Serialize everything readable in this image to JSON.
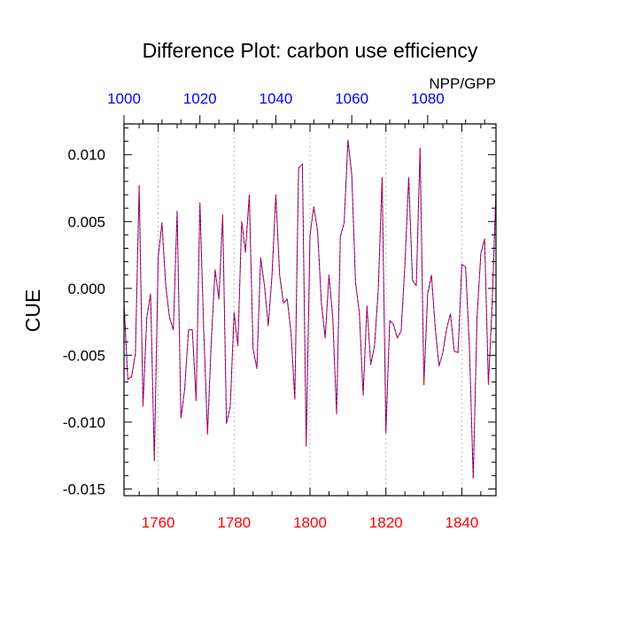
{
  "chart_data": {
    "type": "line",
    "title": "Difference Plot: carbon use efficiency",
    "ylabel": "CUE",
    "right_label": "NPP/GPP",
    "xlim": [
      1751,
      1849
    ],
    "ylim": [
      -0.0155,
      0.0123
    ],
    "bottom_axis": {
      "ticks": [
        1760,
        1780,
        1800,
        1820,
        1840
      ],
      "labels": [
        "1760",
        "1780",
        "1800",
        "1820",
        "1840"
      ],
      "color": "#ff0000"
    },
    "top_axis": {
      "offset": 751,
      "ticks": [
        1000,
        1020,
        1040,
        1060,
        1080
      ],
      "labels": [
        "1000",
        "1020",
        "1040",
        "1060",
        "1080"
      ],
      "color": "#0000ff"
    },
    "y_ticks": [
      0.01,
      0.005,
      0.0,
      -0.005,
      -0.01,
      -0.015
    ],
    "y_tick_labels": [
      "0.010",
      "0.005",
      "0.000",
      "-0.005",
      "-0.010",
      "-0.015"
    ],
    "grid": "vertical dashed at bottom-axis ticks",
    "series": [
      {
        "color": "#0000ff",
        "style": "dashed",
        "x": [
          1751,
          1752,
          1753,
          1754,
          1755,
          1756,
          1757,
          1758,
          1759,
          1760,
          1761,
          1762,
          1763,
          1764,
          1765,
          1766,
          1767,
          1768,
          1769,
          1770,
          1771,
          1772,
          1773,
          1774,
          1775,
          1776,
          1777,
          1778,
          1779,
          1780,
          1781,
          1782,
          1783,
          1784,
          1785,
          1786,
          1787,
          1788,
          1789,
          1790,
          1791,
          1792,
          1793,
          1794,
          1795,
          1796,
          1797,
          1798,
          1799,
          1800,
          1801,
          1802,
          1803,
          1804,
          1805,
          1806,
          1807,
          1808,
          1809,
          1810,
          1811,
          1812,
          1813,
          1814,
          1815,
          1816,
          1817,
          1818,
          1819,
          1820,
          1821,
          1822,
          1823,
          1824,
          1825,
          1826,
          1827,
          1828,
          1829,
          1830,
          1831,
          1832,
          1833,
          1834,
          1835,
          1836,
          1837,
          1838,
          1839,
          1840,
          1841,
          1842,
          1843,
          1844,
          1845,
          1846,
          1847,
          1848,
          1849
        ],
        "y": [
          -0.0011,
          -0.0068,
          -0.0066,
          -0.0049,
          0.0077,
          -0.0088,
          -0.0022,
          -0.0004,
          -0.0129,
          0.0023,
          0.0049,
          0.0002,
          -0.0022,
          -0.0031,
          0.0058,
          -0.0097,
          -0.0075,
          -0.0031,
          -0.0031,
          -0.0084,
          0.0064,
          -0.0031,
          -0.0109,
          -0.0039,
          0.0014,
          -0.0008,
          0.0055,
          -0.0101,
          -0.0088,
          -0.0018,
          -0.0043,
          0.005,
          0.0027,
          0.007,
          -0.0045,
          -0.006,
          0.0023,
          0.0002,
          -0.0028,
          0.001,
          0.007,
          0.001,
          -0.0011,
          -0.0008,
          -0.0033,
          -0.0083,
          0.009,
          0.0093,
          -0.0118,
          0.004,
          0.0061,
          0.0043,
          -0.0011,
          -0.0037,
          0.001,
          -0.0022,
          -0.0094,
          0.0039,
          0.0049,
          0.0111,
          0.0085,
          0.0004,
          -0.0018,
          -0.008,
          -0.0013,
          -0.0057,
          -0.0043,
          0.0,
          0.0083,
          -0.0108,
          -0.0024,
          -0.0027,
          -0.0037,
          -0.0032,
          0.0017,
          0.0083,
          0.0006,
          0.0002,
          0.0105,
          -0.0072,
          -0.0004,
          0.001,
          -0.003,
          -0.0058,
          -0.0048,
          -0.003,
          -0.0019,
          -0.0047,
          -0.0048,
          0.0018,
          0.0016,
          -0.0044,
          -0.0142,
          -0.0022,
          0.0026,
          0.0037,
          -0.0072,
          -0.0011,
          0.0073
        ]
      },
      {
        "color": "#ff0000",
        "style": "dashed",
        "x": [
          1751,
          1752,
          1753,
          1754,
          1755,
          1756,
          1757,
          1758,
          1759,
          1760,
          1761,
          1762,
          1763,
          1764,
          1765,
          1766,
          1767,
          1768,
          1769,
          1770,
          1771,
          1772,
          1773,
          1774,
          1775,
          1776,
          1777,
          1778,
          1779,
          1780,
          1781,
          1782,
          1783,
          1784,
          1785,
          1786,
          1787,
          1788,
          1789,
          1790,
          1791,
          1792,
          1793,
          1794,
          1795,
          1796,
          1797,
          1798,
          1799,
          1800,
          1801,
          1802,
          1803,
          1804,
          1805,
          1806,
          1807,
          1808,
          1809,
          1810,
          1811,
          1812,
          1813,
          1814,
          1815,
          1816,
          1817,
          1818,
          1819,
          1820,
          1821,
          1822,
          1823,
          1824,
          1825,
          1826,
          1827,
          1828,
          1829,
          1830,
          1831,
          1832,
          1833,
          1834,
          1835,
          1836,
          1837,
          1838,
          1839,
          1840,
          1841,
          1842,
          1843,
          1844,
          1845,
          1846,
          1847,
          1848,
          1849
        ],
        "y": [
          -0.0011,
          -0.0068,
          -0.0066,
          -0.0049,
          0.0077,
          -0.0088,
          -0.0022,
          -0.0004,
          -0.0129,
          0.0023,
          0.0049,
          0.0002,
          -0.0022,
          -0.0031,
          0.0058,
          -0.0097,
          -0.0075,
          -0.0031,
          -0.0031,
          -0.0084,
          0.0064,
          -0.0031,
          -0.0109,
          -0.0039,
          0.0014,
          -0.0008,
          0.0055,
          -0.0101,
          -0.0088,
          -0.0018,
          -0.0043,
          0.005,
          0.0027,
          0.007,
          -0.0045,
          -0.006,
          0.0023,
          0.0002,
          -0.0028,
          0.001,
          0.007,
          0.001,
          -0.0011,
          -0.0008,
          -0.0033,
          -0.0083,
          0.009,
          0.0093,
          -0.0118,
          0.004,
          0.0061,
          0.0043,
          -0.0011,
          -0.0037,
          0.001,
          -0.0022,
          -0.0094,
          0.0039,
          0.0049,
          0.0111,
          0.0085,
          0.0004,
          -0.0018,
          -0.008,
          -0.0013,
          -0.0057,
          -0.0043,
          0.0,
          0.0083,
          -0.0108,
          -0.0024,
          -0.0027,
          -0.0037,
          -0.0032,
          0.0017,
          0.0083,
          0.0006,
          0.0002,
          0.0105,
          -0.0072,
          -0.0004,
          0.001,
          -0.003,
          -0.0058,
          -0.0048,
          -0.003,
          -0.0019,
          -0.0047,
          -0.0048,
          0.0018,
          0.0016,
          -0.0044,
          -0.0142,
          -0.0022,
          0.0026,
          0.0037,
          -0.0072,
          -0.0011,
          0.0073
        ]
      }
    ]
  }
}
